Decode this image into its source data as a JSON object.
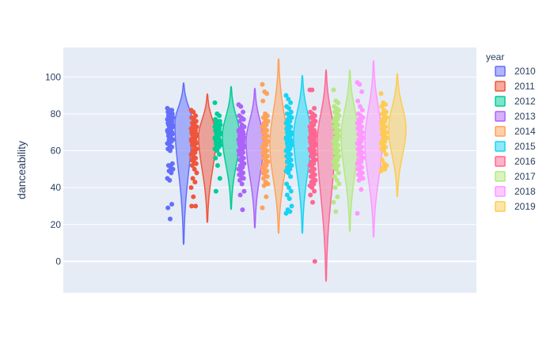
{
  "chart_data": {
    "type": "violin",
    "ylabel": "danceability",
    "yticks": [
      0,
      20,
      40,
      60,
      80,
      100
    ],
    "ylim": [
      -17,
      116
    ],
    "grid": true,
    "legend": {
      "title": "year",
      "position": "right",
      "entries": [
        "2010",
        "2011",
        "2012",
        "2013",
        "2014",
        "2015",
        "2016",
        "2017",
        "2018",
        "2019"
      ]
    },
    "series": [
      {
        "name": "2010",
        "color": "#636efa",
        "min": 9,
        "max": 97,
        "median": 70,
        "q1": 61,
        "q3": 78,
        "peak": 75,
        "points": [
          83,
          82,
          82,
          81,
          80,
          80,
          79,
          79,
          78,
          78,
          77,
          77,
          76,
          76,
          75,
          75,
          74,
          74,
          73,
          73,
          72,
          72,
          71,
          71,
          70,
          70,
          69,
          69,
          68,
          67,
          66,
          66,
          65,
          64,
          63,
          62,
          61,
          60,
          53,
          52,
          51,
          50,
          49,
          48,
          45,
          44,
          31,
          29,
          23
        ]
      },
      {
        "name": "2011",
        "color": "#EF553B",
        "min": 21,
        "max": 91,
        "median": 67,
        "q1": 60,
        "q3": 73,
        "peak": 68,
        "points": [
          82,
          81,
          79,
          78,
          77,
          76,
          75,
          74,
          73,
          73,
          72,
          72,
          71,
          71,
          70,
          70,
          69,
          69,
          68,
          68,
          67,
          67,
          66,
          66,
          65,
          65,
          64,
          64,
          63,
          62,
          61,
          60,
          59,
          58,
          57,
          56,
          55,
          54,
          53,
          52,
          50,
          48,
          45,
          43,
          40,
          35,
          30,
          30
        ]
      },
      {
        "name": "2012",
        "color": "#00cc96",
        "min": 28,
        "max": 95,
        "median": 68,
        "q1": 62,
        "q3": 73,
        "peak": 68,
        "points": [
          86,
          80,
          79,
          77,
          76,
          76,
          75,
          75,
          74,
          74,
          73,
          73,
          72,
          72,
          71,
          71,
          70,
          70,
          69,
          69,
          68,
          68,
          67,
          67,
          66,
          66,
          65,
          65,
          64,
          64,
          63,
          63,
          62,
          61,
          60,
          58,
          56,
          52,
          45,
          38
        ]
      },
      {
        "name": "2013",
        "color": "#ab63fa",
        "min": 18,
        "max": 94,
        "median": 63,
        "q1": 56,
        "q3": 70,
        "peak": 65,
        "points": [
          85,
          84,
          81,
          79,
          78,
          77,
          76,
          74,
          73,
          72,
          72,
          71,
          71,
          70,
          70,
          69,
          69,
          68,
          68,
          67,
          67,
          66,
          66,
          65,
          65,
          64,
          64,
          63,
          63,
          62,
          62,
          61,
          61,
          60,
          60,
          59,
          58,
          57,
          56,
          55,
          54,
          53,
          52,
          51,
          50,
          49,
          48,
          47,
          46,
          45,
          44,
          42,
          38,
          36,
          28
        ]
      },
      {
        "name": "2014",
        "color": "#FFA15A",
        "min": 15,
        "max": 110,
        "median": 63,
        "q1": 55,
        "q3": 71,
        "peak": 63,
        "points": [
          96,
          92,
          91,
          87,
          80,
          79,
          78,
          77,
          76,
          75,
          74,
          73,
          72,
          71,
          70,
          69,
          68,
          67,
          66,
          65,
          64,
          63,
          62,
          61,
          60,
          59,
          58,
          57,
          56,
          55,
          54,
          53,
          52,
          51,
          50,
          49,
          48,
          47,
          46,
          45,
          43,
          42,
          41,
          35,
          29
        ]
      },
      {
        "name": "2015",
        "color": "#19d3f3",
        "min": 15,
        "max": 101,
        "median": 65,
        "q1": 55,
        "q3": 74,
        "peak": 68,
        "points": [
          90,
          88,
          86,
          84,
          83,
          81,
          80,
          79,
          78,
          77,
          76,
          75,
          74,
          73,
          72,
          71,
          70,
          70,
          69,
          69,
          68,
          68,
          67,
          67,
          66,
          66,
          65,
          65,
          64,
          64,
          63,
          62,
          61,
          60,
          59,
          58,
          57,
          56,
          55,
          54,
          53,
          52,
          51,
          50,
          49,
          48,
          46,
          42,
          40,
          38,
          36,
          34,
          30,
          28,
          27,
          26
        ]
      },
      {
        "name": "2016",
        "color": "#FF6692",
        "min": -11,
        "max": 104,
        "median": 64,
        "q1": 56,
        "q3": 71,
        "peak": 65,
        "points": [
          93,
          93,
          83,
          81,
          80,
          79,
          78,
          77,
          76,
          75,
          74,
          73,
          72,
          71,
          71,
          70,
          70,
          69,
          69,
          68,
          68,
          67,
          67,
          66,
          66,
          65,
          65,
          64,
          64,
          63,
          63,
          62,
          62,
          61,
          61,
          60,
          60,
          59,
          58,
          57,
          56,
          55,
          54,
          53,
          52,
          51,
          50,
          49,
          48,
          47,
          46,
          45,
          44,
          43,
          42,
          41,
          40,
          38,
          36,
          32,
          0
        ]
      },
      {
        "name": "2017",
        "color": "#B6E880",
        "min": 16,
        "max": 104,
        "median": 66,
        "q1": 57,
        "q3": 73,
        "peak": 68,
        "points": [
          93,
          87,
          86,
          84,
          83,
          82,
          81,
          80,
          79,
          78,
          77,
          76,
          75,
          74,
          73,
          72,
          71,
          70,
          69,
          68,
          67,
          66,
          65,
          64,
          63,
          62,
          61,
          60,
          59,
          58,
          57,
          56,
          55,
          54,
          53,
          52,
          51,
          50,
          48,
          46,
          44,
          42,
          40,
          35,
          32,
          27
        ]
      },
      {
        "name": "2018",
        "color": "#FF97FF",
        "min": 13,
        "max": 109,
        "median": 65,
        "q1": 57,
        "q3": 72,
        "peak": 65,
        "points": [
          97,
          96,
          92,
          87,
          84,
          82,
          80,
          79,
          78,
          77,
          76,
          75,
          74,
          73,
          72,
          71,
          70,
          69,
          68,
          67,
          66,
          65,
          64,
          63,
          62,
          61,
          60,
          59,
          58,
          57,
          56,
          55,
          54,
          53,
          52,
          51,
          50,
          49,
          48,
          47,
          46,
          45,
          44,
          39,
          26
        ]
      },
      {
        "name": "2019",
        "color": "#FECB52",
        "min": 35,
        "max": 102,
        "median": 71,
        "q1": 62,
        "q3": 79,
        "peak": 72,
        "points": [
          91,
          86,
          85,
          84,
          82,
          81,
          80,
          79,
          78,
          77,
          76,
          75,
          74,
          73,
          72,
          71,
          70,
          69,
          68,
          67,
          66,
          65,
          64,
          63,
          62,
          61,
          60,
          58,
          55,
          53,
          52,
          51,
          50,
          49
        ]
      }
    ]
  }
}
